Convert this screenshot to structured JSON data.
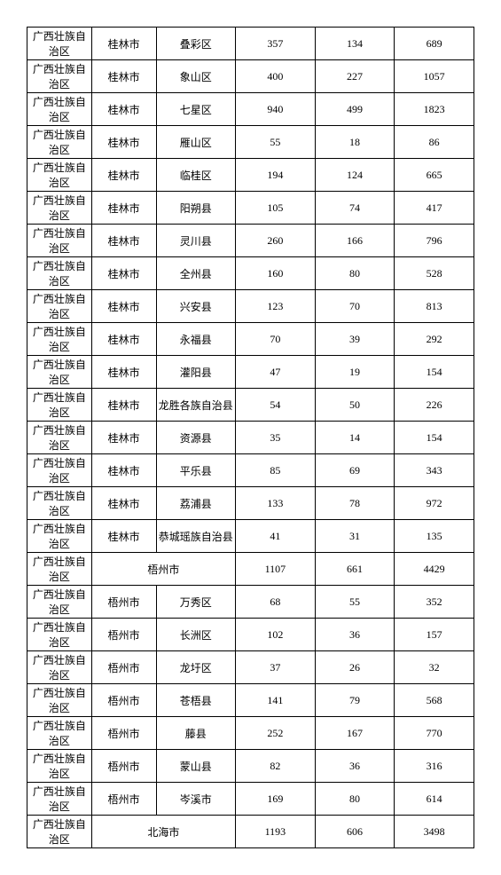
{
  "table": {
    "rows": [
      {
        "r": "广西壮族自治区",
        "c": "桂林市",
        "d": "叠彩区",
        "v1": "357",
        "v2": "134",
        "v3": "689"
      },
      {
        "r": "广西壮族自治区",
        "c": "桂林市",
        "d": "象山区",
        "v1": "400",
        "v2": "227",
        "v3": "1057"
      },
      {
        "r": "广西壮族自治区",
        "c": "桂林市",
        "d": "七星区",
        "v1": "940",
        "v2": "499",
        "v3": "1823"
      },
      {
        "r": "广西壮族自治区",
        "c": "桂林市",
        "d": "雁山区",
        "v1": "55",
        "v2": "18",
        "v3": "86"
      },
      {
        "r": "广西壮族自治区",
        "c": "桂林市",
        "d": "临桂区",
        "v1": "194",
        "v2": "124",
        "v3": "665"
      },
      {
        "r": "广西壮族自治区",
        "c": "桂林市",
        "d": "阳朔县",
        "v1": "105",
        "v2": "74",
        "v3": "417"
      },
      {
        "r": "广西壮族自治区",
        "c": "桂林市",
        "d": "灵川县",
        "v1": "260",
        "v2": "166",
        "v3": "796"
      },
      {
        "r": "广西壮族自治区",
        "c": "桂林市",
        "d": "全州县",
        "v1": "160",
        "v2": "80",
        "v3": "528"
      },
      {
        "r": "广西壮族自治区",
        "c": "桂林市",
        "d": "兴安县",
        "v1": "123",
        "v2": "70",
        "v3": "813"
      },
      {
        "r": "广西壮族自治区",
        "c": "桂林市",
        "d": "永福县",
        "v1": "70",
        "v2": "39",
        "v3": "292"
      },
      {
        "r": "广西壮族自治区",
        "c": "桂林市",
        "d": "灌阳县",
        "v1": "47",
        "v2": "19",
        "v3": "154"
      },
      {
        "r": "广西壮族自治区",
        "c": "桂林市",
        "d": "龙胜各族自治县",
        "v1": "54",
        "v2": "50",
        "v3": "226"
      },
      {
        "r": "广西壮族自治区",
        "c": "桂林市",
        "d": "资源县",
        "v1": "35",
        "v2": "14",
        "v3": "154"
      },
      {
        "r": "广西壮族自治区",
        "c": "桂林市",
        "d": "平乐县",
        "v1": "85",
        "v2": "69",
        "v3": "343"
      },
      {
        "r": "广西壮族自治区",
        "c": "桂林市",
        "d": "荔浦县",
        "v1": "133",
        "v2": "78",
        "v3": "972"
      },
      {
        "r": "广西壮族自治区",
        "c": "桂林市",
        "d": "恭城瑶族自治县",
        "v1": "41",
        "v2": "31",
        "v3": "135"
      },
      {
        "r": "广西壮族自治区",
        "cm": "梧州市",
        "v1": "1107",
        "v2": "661",
        "v3": "4429",
        "merge": true
      },
      {
        "r": "广西壮族自治区",
        "c": "梧州市",
        "d": "万秀区",
        "v1": "68",
        "v2": "55",
        "v3": "352"
      },
      {
        "r": "广西壮族自治区",
        "c": "梧州市",
        "d": "长洲区",
        "v1": "102",
        "v2": "36",
        "v3": "157"
      },
      {
        "r": "广西壮族自治区",
        "c": "梧州市",
        "d": "龙圩区",
        "v1": "37",
        "v2": "26",
        "v3": "32"
      },
      {
        "r": "广西壮族自治区",
        "c": "梧州市",
        "d": "苍梧县",
        "v1": "141",
        "v2": "79",
        "v3": "568"
      },
      {
        "r": "广西壮族自治区",
        "c": "梧州市",
        "d": "藤县",
        "v1": "252",
        "v2": "167",
        "v3": "770"
      },
      {
        "r": "广西壮族自治区",
        "c": "梧州市",
        "d": "蒙山县",
        "v1": "82",
        "v2": "36",
        "v3": "316"
      },
      {
        "r": "广西壮族自治区",
        "c": "梧州市",
        "d": "岑溪市",
        "v1": "169",
        "v2": "80",
        "v3": "614"
      },
      {
        "r": "广西壮族自治区",
        "cm": "北海市",
        "v1": "1193",
        "v2": "606",
        "v3": "3498",
        "merge": true
      }
    ]
  }
}
